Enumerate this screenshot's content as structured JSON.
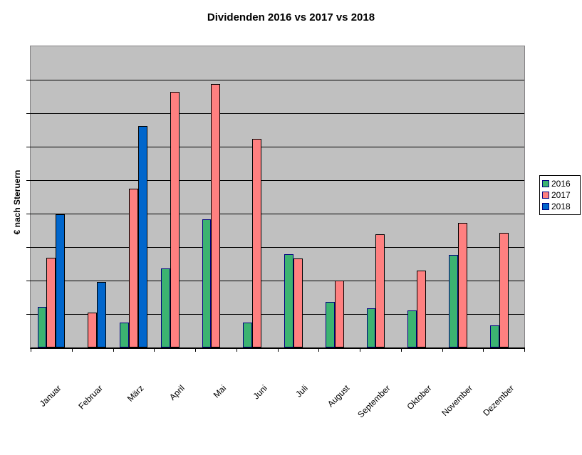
{
  "chart_data": {
    "type": "bar",
    "title": "Dividenden 2016 vs 2017 vs 2018",
    "xlabel": "",
    "ylabel": "€ nach Steruern",
    "categories": [
      "Januar",
      "Februar",
      "März",
      "April",
      "Mai",
      "Juni",
      "Juli",
      "August",
      "September",
      "Oktober",
      "November",
      "Dezember"
    ],
    "series": [
      {
        "name": "2016",
        "color": "#3CB371",
        "border_color": "#000080",
        "values": [
          1.22,
          0,
          0.74,
          2.36,
          3.82,
          0.74,
          2.78,
          1.37,
          1.16,
          1.1,
          2.76,
          0.66
        ]
      },
      {
        "name": "2017",
        "color": "#FF8080",
        "border_color": "#000000",
        "values": [
          2.69,
          1.05,
          4.74,
          7.63,
          7.87,
          6.23,
          2.65,
          2.01,
          3.38,
          2.29,
          3.72,
          3.42
        ]
      },
      {
        "name": "2018",
        "color": "#0066CC",
        "border_color": "#000000",
        "values": [
          3.98,
          1.95,
          6.62,
          null,
          null,
          null,
          null,
          null,
          null,
          null,
          null,
          null
        ]
      }
    ],
    "ylim": [
      0,
      9
    ],
    "y_gridline_step": 1,
    "y_tick_labels": [],
    "values_unit": "gridline units (y-axis tick labels not shown in chart)",
    "grid": true,
    "plot_bg": "#C0C0C0",
    "legend_position": "right",
    "legend_entries": [
      "2016",
      "2017",
      "2018"
    ]
  }
}
